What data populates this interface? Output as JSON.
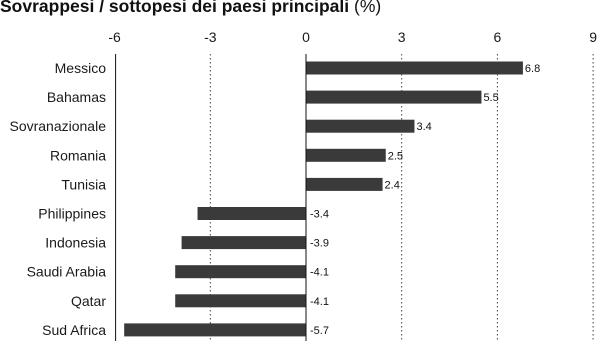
{
  "title": {
    "bold": "Sovrappesi / sottopesi dei paesi principali",
    "unit": " (%)"
  },
  "colors": {
    "bar": "#3a3a3a",
    "axis": "#111111",
    "grid": "#444444"
  },
  "chart_data": {
    "type": "bar",
    "orientation": "horizontal",
    "title": "Sovrappesi / sottopesi dei paesi principali (%)",
    "xlim": [
      -6,
      9
    ],
    "xticks": [
      -6,
      -3,
      0,
      3,
      6,
      9
    ],
    "grid": "vertical dotted",
    "categories": [
      "Messico",
      "Bahamas",
      "Sovranazionale",
      "Romania",
      "Tunisia",
      "Philippines",
      "Indonesia",
      "Saudi Arabia",
      "Qatar",
      "Sud Africa"
    ],
    "values": [
      6.8,
      5.5,
      3.4,
      2.5,
      2.4,
      -3.4,
      -3.9,
      -4.1,
      -4.1,
      -5.7
    ],
    "value_labels": [
      "6.8",
      "5.5",
      "3.4",
      "2.5",
      "2.4",
      "-3.4",
      "-3.9",
      "-4.1",
      "-4.1",
      "-5.7"
    ]
  }
}
